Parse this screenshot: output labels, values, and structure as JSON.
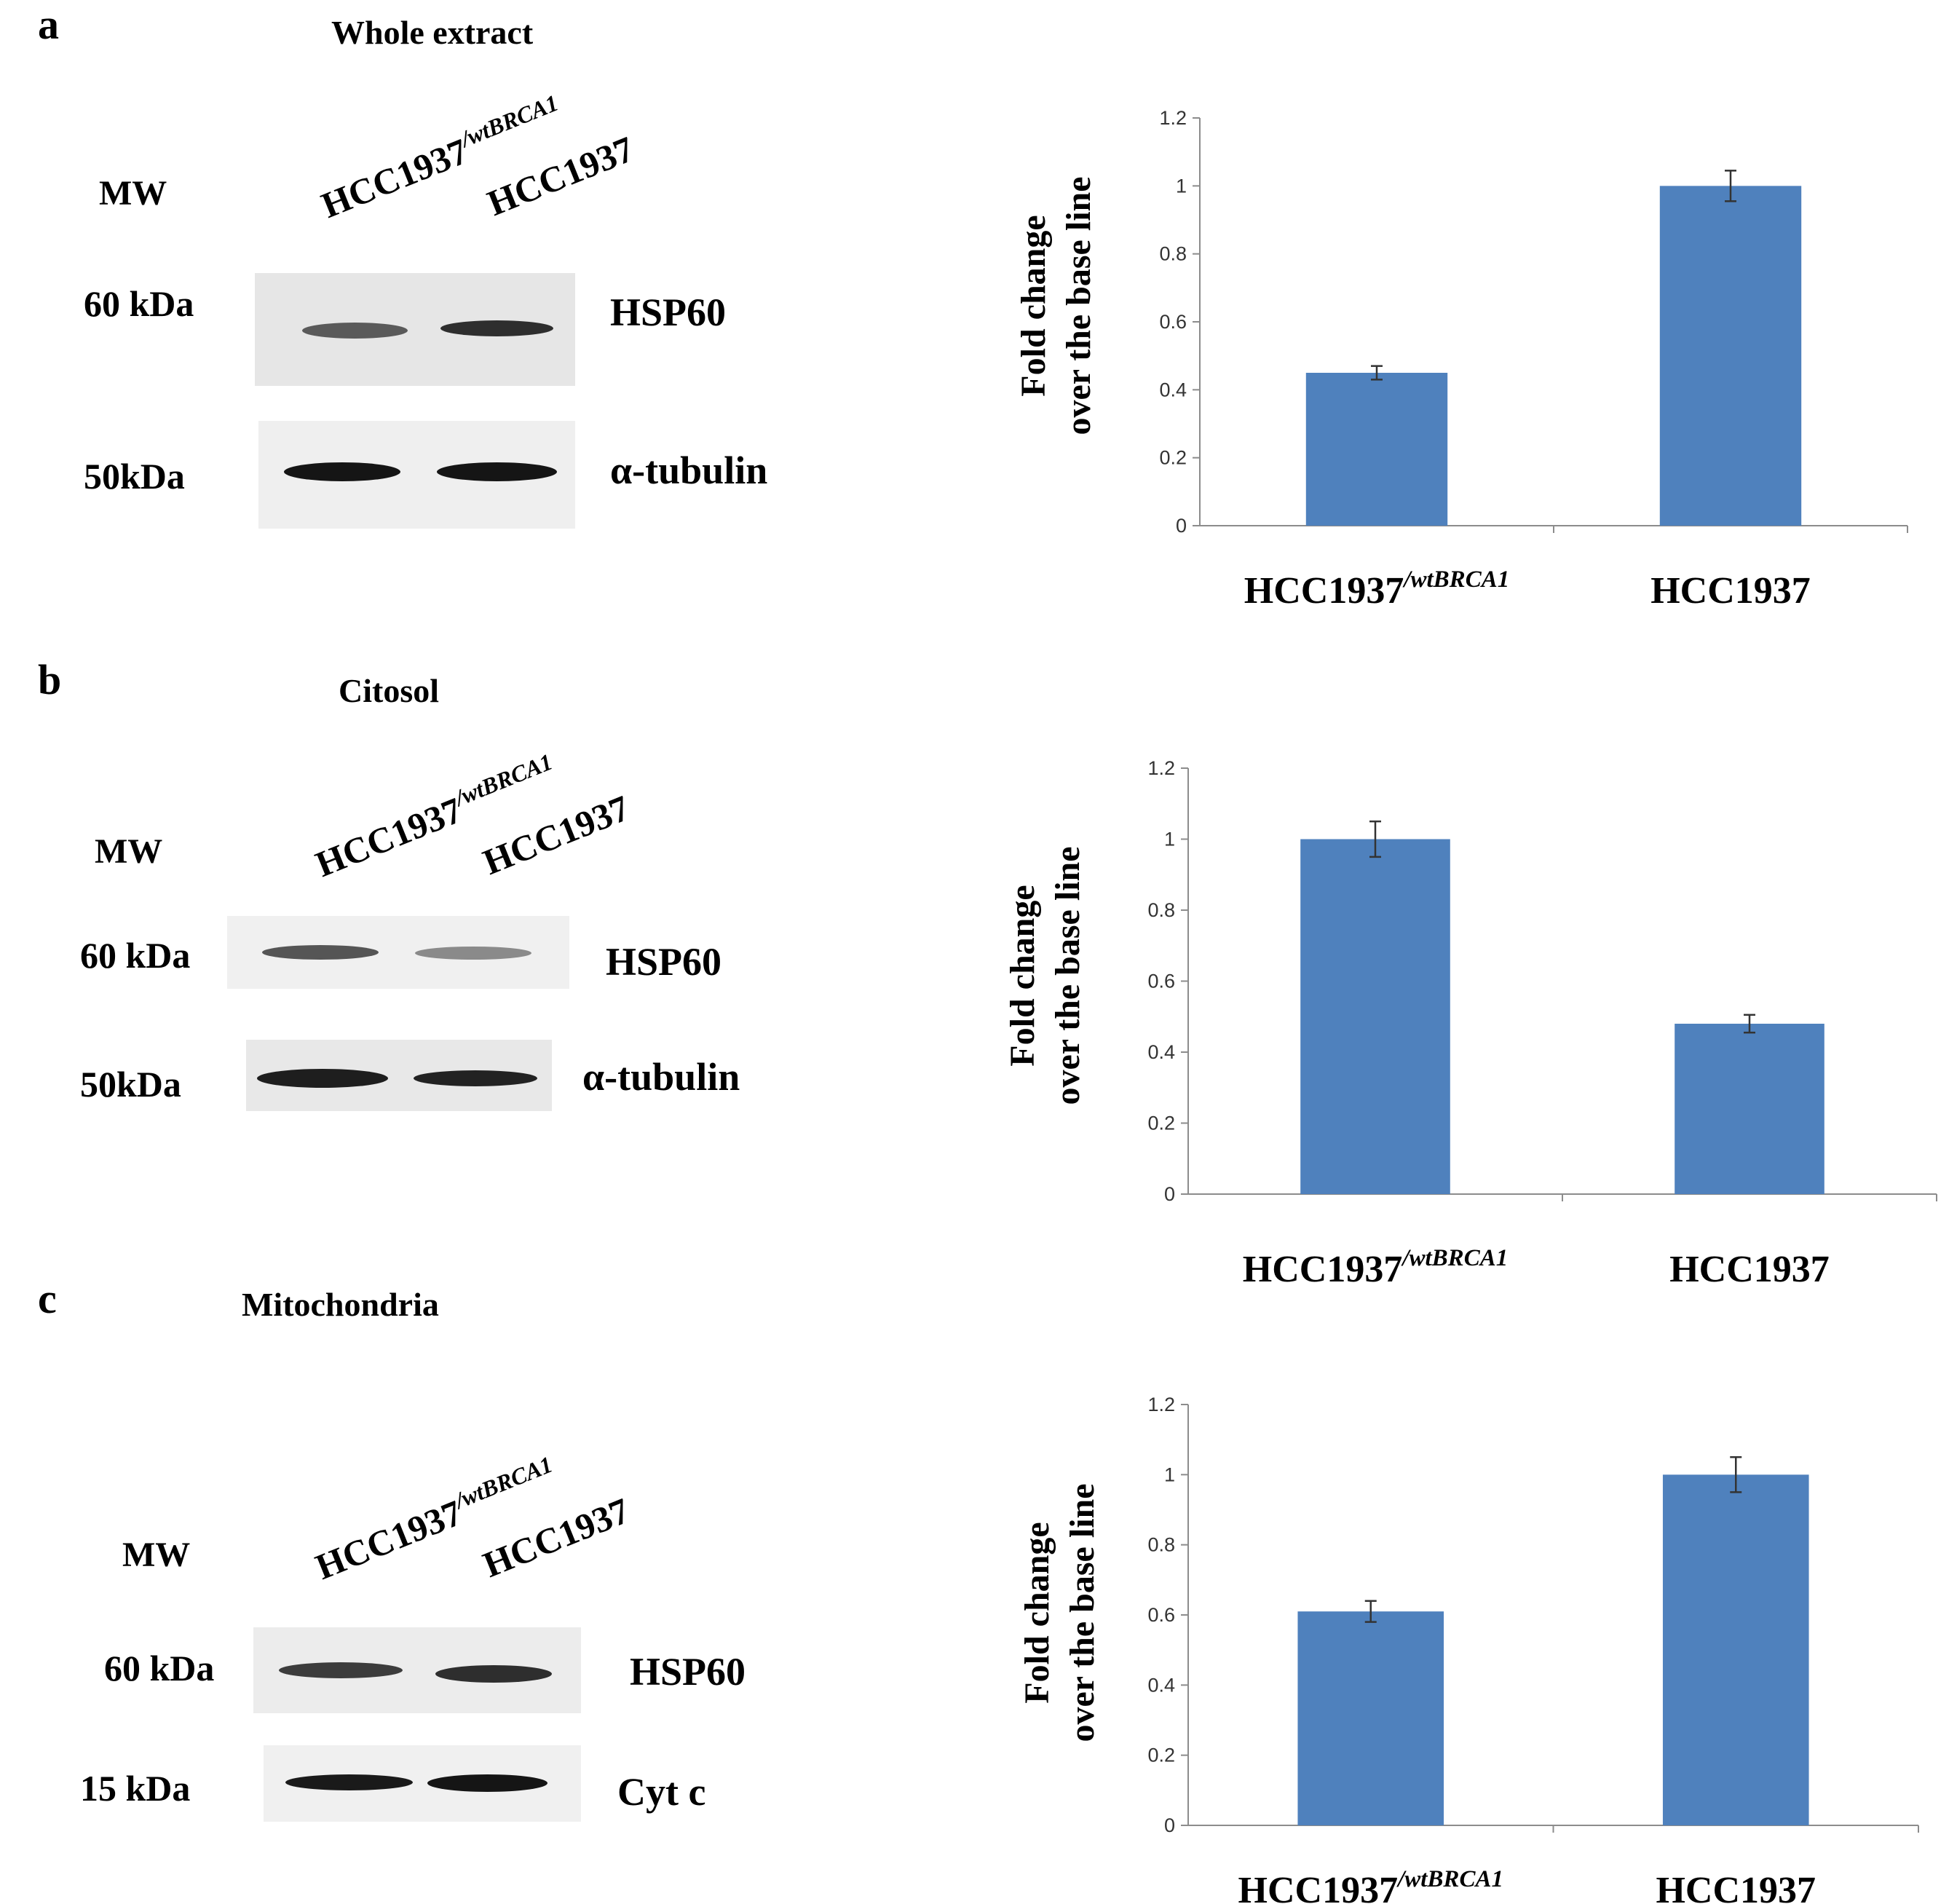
{
  "panels": [
    {
      "letter": "a",
      "title": "Whole extract",
      "mw_label": "MW",
      "lanes": [
        "HCC1937",
        "/wtBRCA1",
        "HCC1937"
      ],
      "blots": [
        {
          "kda": "60 kDa",
          "protein": "HSP60"
        },
        {
          "kda": "50kDa",
          "protein": "α-tubulin"
        }
      ]
    },
    {
      "letter": "b",
      "title": "Citosol",
      "mw_label": "MW",
      "lanes": [
        "HCC1937",
        "/wtBRCA1",
        "HCC1937"
      ],
      "blots": [
        {
          "kda": "60 kDa",
          "protein": "HSP60"
        },
        {
          "kda": "50kDa",
          "protein": "α-tubulin"
        }
      ]
    },
    {
      "letter": "c",
      "title": "Mitochondria",
      "mw_label": "MW",
      "lanes": [
        "HCC1937",
        "/wtBRCA1",
        "HCC1937"
      ],
      "blots": [
        {
          "kda": "60 kDa",
          "protein": "HSP60"
        },
        {
          "kda": "15 kDa",
          "protein": "Cyt c"
        }
      ]
    }
  ],
  "chart_data": [
    {
      "type": "bar",
      "categories": [
        "HCC1937/wtBRCA1",
        "HCC1937"
      ],
      "category_display": [
        {
          "base": "HCC1937",
          "sup": "/wtBRCA1"
        },
        {
          "base": "HCC1937",
          "sup": ""
        }
      ],
      "values": [
        0.45,
        1.0
      ],
      "errors": [
        0.02,
        0.045
      ],
      "ylabel": [
        "Fold change",
        "over the base line"
      ],
      "yticks": [
        "0",
        "0.2",
        "0.4",
        "0.6",
        "0.8",
        "1",
        "1.2"
      ],
      "ylim": [
        0,
        1.2
      ],
      "bar_color": "#4f81bd"
    },
    {
      "type": "bar",
      "categories": [
        "HCC1937/wtBRCA1",
        "HCC1937"
      ],
      "category_display": [
        {
          "base": "HCC1937",
          "sup": "/wtBRCA1"
        },
        {
          "base": "HCC1937",
          "sup": ""
        }
      ],
      "values": [
        1.0,
        0.48
      ],
      "errors": [
        0.05,
        0.025
      ],
      "ylabel": [
        "Fold change",
        "over the base line"
      ],
      "yticks": [
        "0",
        "0.2",
        "0.4",
        "0.6",
        "0.8",
        "1",
        "1.2"
      ],
      "ylim": [
        0,
        1.2
      ],
      "bar_color": "#4f81bd"
    },
    {
      "type": "bar",
      "categories": [
        "HCC1937/wtBRCA1",
        "HCC1937"
      ],
      "category_display": [
        {
          "base": "HCC1937",
          "sup": "/wtBRCA1"
        },
        {
          "base": "HCC1937",
          "sup": ""
        }
      ],
      "values": [
        0.61,
        1.0
      ],
      "errors": [
        0.03,
        0.05
      ],
      "ylabel": [
        "Fold change",
        "over the base line"
      ],
      "yticks": [
        "0",
        "0.2",
        "0.4",
        "0.6",
        "0.8",
        "1",
        "1.2"
      ],
      "ylim": [
        0,
        1.2
      ],
      "bar_color": "#4f81bd"
    }
  ]
}
